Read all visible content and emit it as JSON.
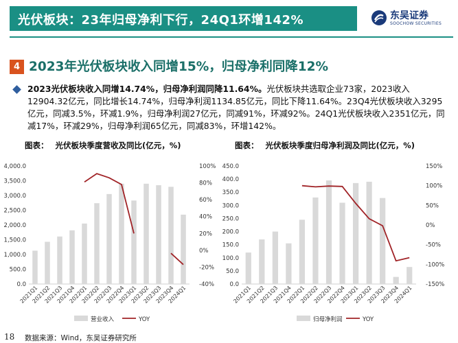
{
  "header": {
    "title": "光伏板块：23年归母净利下行，24Q1环增142%",
    "logo_cn": "东吴证券",
    "logo_en": "SOOCHOW SECURITIES"
  },
  "section": {
    "number": "4",
    "title": "2023年光伏板块收入同增15%，归母净利同降12%"
  },
  "summary": {
    "bold": "2023光伏板块收入同增14.74%，归母净利润同降11.64%。",
    "text": "光伏板块共选取企业73家，2023收入12904.32亿元，同比增长14.74%，归母净利润1134.85亿元，同比下降11.64%。23Q4光伏板块收入3295亿元，同减3.5%，环减1.9%，归母净利润27亿元，同减91%，环减92%。24Q1光伏板块收入2351亿元，同减17%，环减29%，归母净利润65亿元，同减83%，环增142%。"
  },
  "chart_data": [
    {
      "type": "bar",
      "label": "图表：",
      "title": "光伏板块季度营收及同比(亿元，%)",
      "categories": [
        "2021Q1",
        "2021Q2",
        "2021Q3",
        "2021Q4",
        "2022Q1",
        "2022Q2",
        "2022Q3",
        "2022Q4",
        "2023Q1",
        "2023Q2",
        "2023Q3",
        "2023Q4",
        "2024Q1"
      ],
      "series": [
        {
          "name": "营业收入",
          "type": "bar",
          "axis": "left",
          "values": [
            1130,
            1430,
            1610,
            1820,
            2050,
            2740,
            3050,
            3400,
            2830,
            3400,
            3350,
            3295,
            2351
          ]
        },
        {
          "name": "YOY",
          "type": "line",
          "axis": "right",
          "values": [
            null,
            null,
            null,
            null,
            81,
            91,
            86,
            78,
            20,
            null,
            null,
            -3.5,
            -17
          ]
        }
      ],
      "y_left": {
        "min": 0,
        "max": 4000,
        "ticks": [
          "4,000.0",
          "3,500.0",
          "3,000.0",
          "2,500.0",
          "2,000.0",
          "1,500.0",
          "1,000.0",
          "500.0",
          "0.0"
        ]
      },
      "y_right": {
        "min": -40,
        "max": 100,
        "ticks": [
          "100%",
          "80%",
          "60%",
          "40%",
          "20%",
          "0%",
          "-20%",
          "-40%"
        ]
      },
      "colors": {
        "bar": "#d9d9d9",
        "line": "#a02226"
      }
    },
    {
      "type": "bar",
      "label": "图表：",
      "title": "光伏板块季度归母净利润及同比(亿元，%)",
      "categories": [
        "2021Q1",
        "2021Q2",
        "2021Q3",
        "2021Q4",
        "2022Q1",
        "2022Q2",
        "2022Q3",
        "2022Q4",
        "2023Q1",
        "2023Q2",
        "2023Q3",
        "2023Q4",
        "2024Q1"
      ],
      "series": [
        {
          "name": "归母净利润",
          "type": "bar",
          "axis": "left",
          "values": [
            120,
            170,
            200,
            155,
            245,
            330,
            395,
            310,
            385,
            390,
            328,
            27,
            65
          ]
        },
        {
          "name": "YOY",
          "type": "line",
          "axis": "right",
          "values": [
            null,
            null,
            null,
            null,
            100,
            97,
            99,
            98,
            55,
            16,
            -2,
            -91,
            -83
          ]
        }
      ],
      "y_left": {
        "min": 0,
        "max": 450,
        "ticks": [
          "450.0",
          "400.0",
          "350.0",
          "300.0",
          "250.0",
          "200.0",
          "150.0",
          "100.0",
          "50.0",
          "0.0"
        ]
      },
      "y_right": {
        "min": -150,
        "max": 150,
        "ticks": [
          "150%",
          "100%",
          "50%",
          "0%",
          "-50%",
          "-100%",
          "-150%"
        ]
      },
      "colors": {
        "bar": "#d9d9d9",
        "line": "#a02226"
      }
    }
  ],
  "footer": {
    "page": "18",
    "source": "数据来源：Wind，东吴证券研究所"
  }
}
